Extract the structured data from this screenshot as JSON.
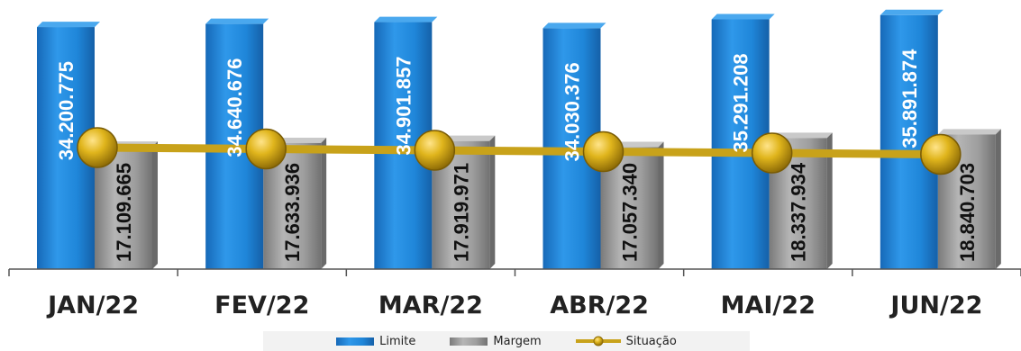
{
  "chart_data": {
    "type": "bar",
    "categories": [
      "JAN/22",
      "FEV/22",
      "MAR/22",
      "ABR/22",
      "MAI/22",
      "JUN/22"
    ],
    "series": [
      {
        "name": "Limite",
        "type": "bar",
        "color": "#1f86d9",
        "values": [
          34200775,
          34640676,
          34901857,
          34030376,
          35291208,
          35891874
        ],
        "labels": [
          "34.200.775",
          "34.640.676",
          "34.901.857",
          "34.030.376",
          "35.291.208",
          "35.891.874"
        ]
      },
      {
        "name": "Margem",
        "type": "bar",
        "color": "#9e9e9e",
        "values": [
          17109665,
          17633936,
          17919971,
          17057340,
          18337934,
          18840703
        ],
        "labels": [
          "17.109.665",
          "17.633.936",
          "17.919.971",
          "17.057.340",
          "18.337.934",
          "18.840.703"
        ]
      },
      {
        "name": "Situação",
        "type": "line",
        "color": "#c8a21a"
      }
    ],
    "ylim": [
      0,
      36500000
    ],
    "grid": false,
    "legend_position": "bottom"
  },
  "legend": {
    "limite": "Limite",
    "margem": "Margem",
    "situacao": "Situação"
  }
}
